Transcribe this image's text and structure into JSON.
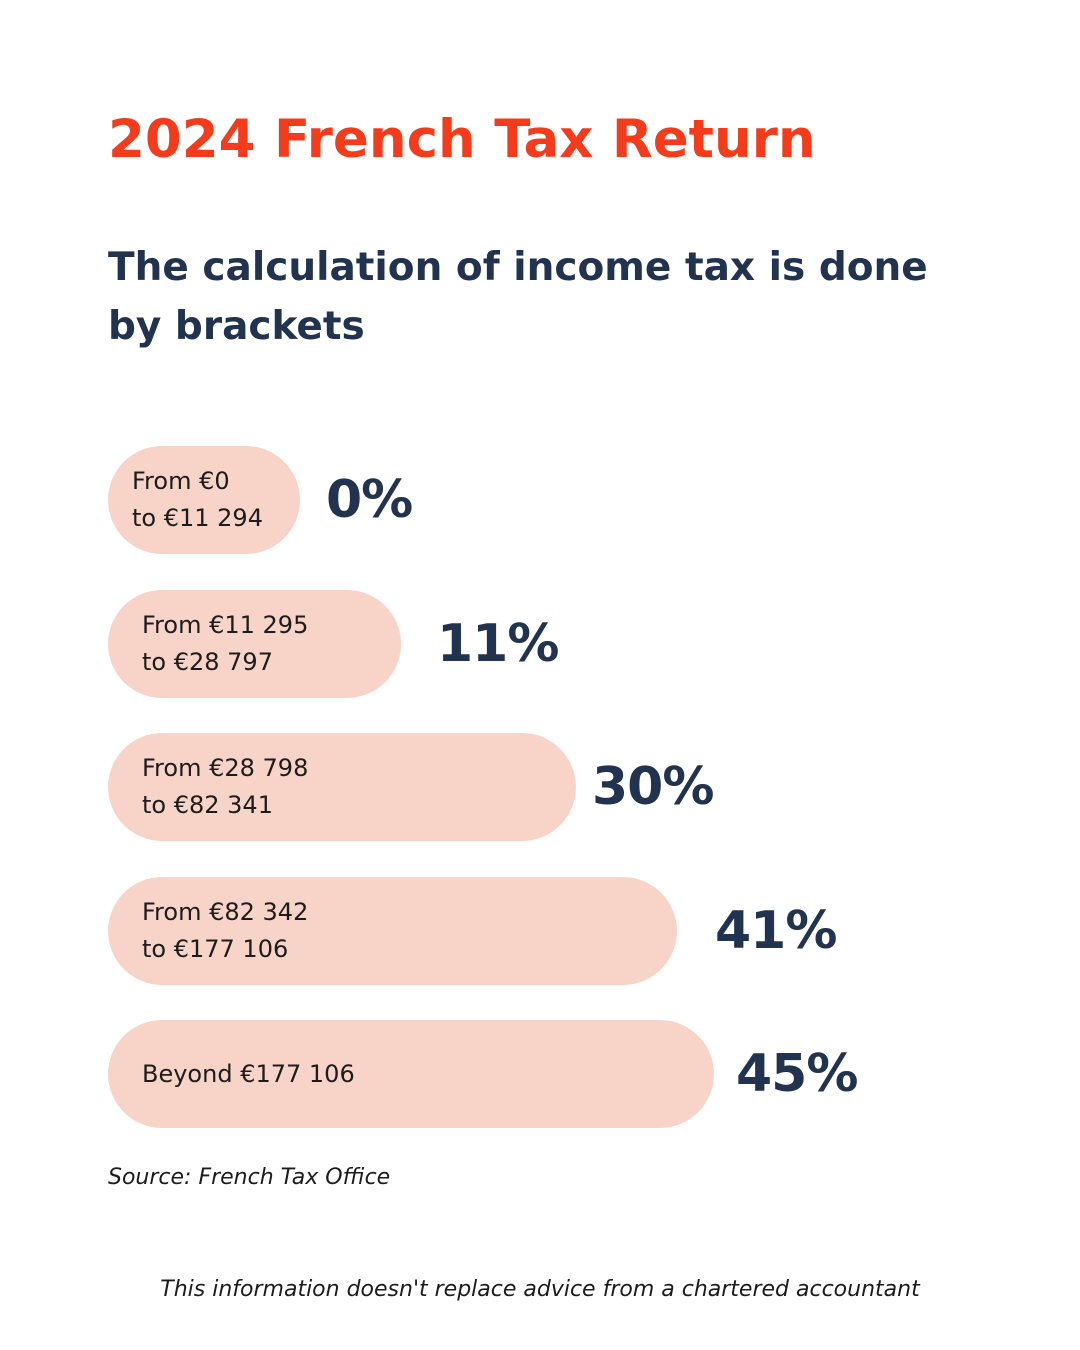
{
  "header": {
    "title": "2024 French Tax Return",
    "subtitle": "The calculation of income tax is done by brackets"
  },
  "colors": {
    "title": "#f43c1c",
    "heading": "#223350",
    "pill": "#f8d4c8",
    "text": "#1c1c1c"
  },
  "chart_data": {
    "type": "bar",
    "orientation": "horizontal",
    "categories": [
      [
        "From €0",
        "to €11 294"
      ],
      [
        "From €11 295",
        "to €28 797"
      ],
      [
        "From €28 798",
        "to €82 341"
      ],
      [
        "From €82 342",
        "to €177 106"
      ],
      [
        "Beyond €177 106"
      ]
    ],
    "values": [
      0,
      11,
      30,
      41,
      45
    ],
    "value_labels": [
      "0%",
      "11%",
      "30%",
      "41%",
      "45%"
    ],
    "unit": "%",
    "xlim": [
      0,
      45
    ],
    "grid": false,
    "legend": "none"
  },
  "footer": {
    "source": "Source: French Tax Office",
    "disclaimer": "This information doesn't replace advice from a chartered accountant"
  }
}
